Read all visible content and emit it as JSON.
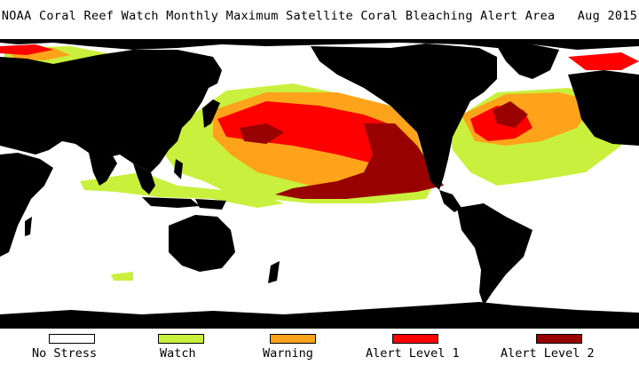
{
  "title": "NOAA Coral Reef Watch Monthly Maximum Satellite Coral Bleaching Alert Area   Aug 2015",
  "map": {
    "land_color": "#000000",
    "ocean_no_stress_color": "#ffffff"
  },
  "legend": [
    {
      "label": "No Stress",
      "color": "#ffffff"
    },
    {
      "label": "Watch",
      "color": "#c8f03c"
    },
    {
      "label": "Warning",
      "color": "#ffa31a"
    },
    {
      "label": "Alert Level 1",
      "color": "#ff0000"
    },
    {
      "label": "Alert Level 2",
      "color": "#990000"
    }
  ]
}
